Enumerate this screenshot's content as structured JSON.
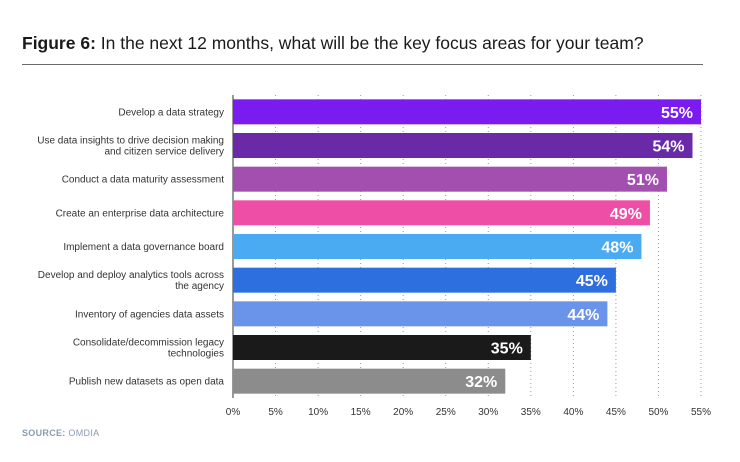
{
  "figure": {
    "label": "Figure 6:",
    "title": "In the next 12 months, what will be the key focus areas for your team?"
  },
  "source": {
    "label": "SOURCE:",
    "value": "OMDIA"
  },
  "chart_data": {
    "type": "bar",
    "orientation": "horizontal",
    "grid": true,
    "xlim": [
      0,
      55
    ],
    "ticks": [
      "0%",
      "5%",
      "10%",
      "15%",
      "20%",
      "25%",
      "30%",
      "35%",
      "40%",
      "45%",
      "50%",
      "55%"
    ],
    "tick_values": [
      0,
      5,
      10,
      15,
      20,
      25,
      30,
      35,
      40,
      45,
      50,
      55
    ],
    "categories": [
      [
        "Develop a data strategy"
      ],
      [
        "Use data insights to drive decision making",
        "and citizen service delivery"
      ],
      [
        "Conduct a data maturity assessment"
      ],
      [
        "Create an enterprise data architecture"
      ],
      [
        "Implement a data governance board"
      ],
      [
        "Develop and deploy analytics tools across",
        "the agency"
      ],
      [
        "Inventory of agencies data assets"
      ],
      [
        "Consolidate/decommission legacy",
        "technologies"
      ],
      [
        "Publish new datasets as open data"
      ]
    ],
    "values": [
      55,
      54,
      51,
      49,
      48,
      45,
      44,
      35,
      32
    ],
    "value_labels": [
      "55%",
      "54%",
      "51%",
      "49%",
      "48%",
      "45%",
      "44%",
      "35%",
      "32%"
    ],
    "colors": [
      "#7a1cf0",
      "#6a2aa8",
      "#a24fb0",
      "#ef4ea6",
      "#4aabf3",
      "#2e6fe0",
      "#6a93ea",
      "#1a1a1a",
      "#8c8c8c"
    ]
  }
}
